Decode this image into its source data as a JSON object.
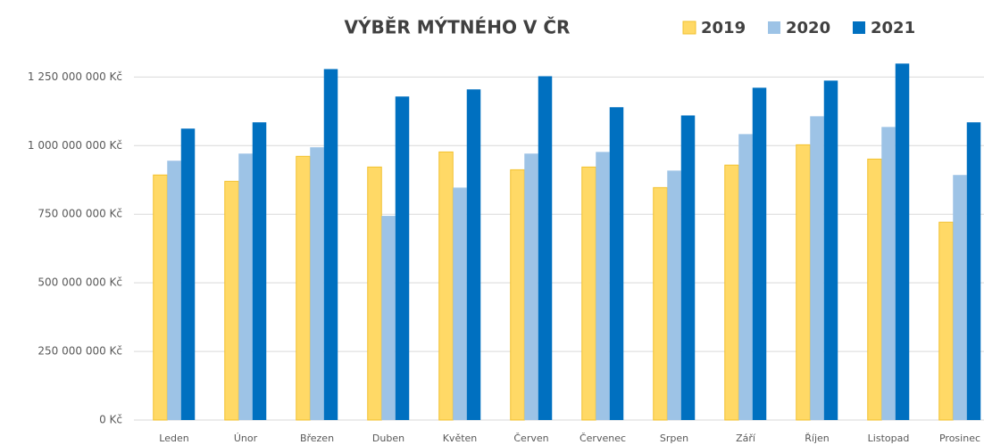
{
  "chart_data": {
    "type": "bar",
    "title": "VÝBĚR MÝTNÉHO V ČR",
    "categories": [
      "Leden",
      "Únor",
      "Březen",
      "Duben",
      "Květen",
      "Červen",
      "Červenec",
      "Srpen",
      "Září",
      "Říjen",
      "Listopad",
      "Prosinec"
    ],
    "series": [
      {
        "name": "2019",
        "color": "#FFD966",
        "stroke": "#F2C12E",
        "values": [
          893000000,
          870000000,
          961000000,
          922000000,
          977000000,
          912000000,
          922000000,
          847000000,
          929000000,
          1003000000,
          951000000,
          721000000
        ]
      },
      {
        "name": "2020",
        "color": "#9DC3E6",
        "values": [
          945000000,
          971000000,
          994000000,
          744000000,
          847000000,
          971000000,
          977000000,
          909000000,
          1042000000,
          1107000000,
          1068000000,
          893000000
        ]
      },
      {
        "name": "2021",
        "color": "#0070C0",
        "values": [
          1062000000,
          1085000000,
          1279000000,
          1179000000,
          1205000000,
          1253000000,
          1140000000,
          1110000000,
          1211000000,
          1237000000,
          1299000000,
          1085000000
        ]
      }
    ],
    "ylim": [
      0,
      1300000000
    ],
    "yticks": [
      {
        "value": 0,
        "label": "0 Kč"
      },
      {
        "value": 250000000,
        "label": "250 000 000 Kč"
      },
      {
        "value": 500000000,
        "label": "500 000 000 Kč"
      },
      {
        "value": 750000000,
        "label": "750 000 000 Kč"
      },
      {
        "value": 1000000000,
        "label": "1 000 000 000 Kč"
      },
      {
        "value": 1250000000,
        "label": "1 250 000 000 Kč"
      }
    ],
    "grid": true,
    "legend": "top-right"
  }
}
